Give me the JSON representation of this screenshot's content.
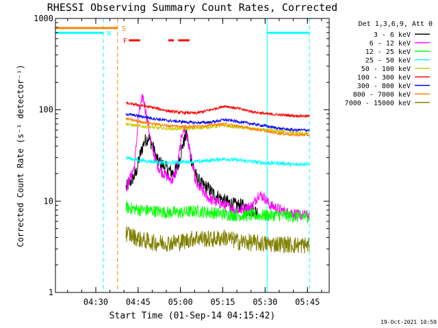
{
  "chart_data": {
    "type": "line",
    "title": "RHESSI Observing Summary Count Rates, Corrected",
    "xlabel": "Start Time (01-Sep-14 04:15:42)",
    "ylabel": "Corrected Count Rate (s⁻¹ detector⁻¹)",
    "yscale": "log",
    "ylim": [
      1,
      1000
    ],
    "xlim_minutes": [
      0,
      97
    ],
    "x_ticks": [
      {
        "t": 14.3,
        "label": "04:30"
      },
      {
        "t": 29.3,
        "label": "04:45"
      },
      {
        "t": 44.3,
        "label": "05:00"
      },
      {
        "t": 59.3,
        "label": "05:15"
      },
      {
        "t": 74.3,
        "label": "05:30"
      },
      {
        "t": 89.3,
        "label": "05:45"
      }
    ],
    "y_ticks": [
      {
        "v": 1,
        "label": "1"
      },
      {
        "v": 10,
        "label": "10"
      },
      {
        "v": 100,
        "label": "100"
      },
      {
        "v": 1000,
        "label": "1000"
      }
    ],
    "legend_header": "Det 1,3,6,9, Att 0",
    "timestamp": "19-Oct-2021 10:59",
    "series": [
      {
        "name": "3 - 6 keV",
        "color": "#000000",
        "t": [
          25,
          27,
          28.5,
          30,
          31.5,
          33,
          34.5,
          36,
          38,
          40,
          42,
          43.5,
          45,
          46.5,
          48,
          50,
          52,
          54,
          56,
          58,
          60,
          62,
          64,
          66,
          68,
          70,
          72
        ],
        "v": [
          14,
          17,
          20,
          32,
          45,
          50,
          40,
          28,
          25,
          22,
          20,
          25,
          40,
          55,
          30,
          18,
          15,
          14,
          12,
          11,
          10,
          9.5,
          9,
          9,
          8,
          8,
          7.5
        ]
      },
      {
        "name": "6 - 12 keV",
        "color": "#ff00ff",
        "t": [
          25,
          26.5,
          28,
          29.5,
          31,
          32.5,
          34,
          35.5,
          37,
          38.5,
          40,
          41.5,
          43,
          44,
          45,
          46,
          47,
          48.5,
          50,
          52,
          54,
          56,
          58,
          60,
          62,
          64,
          66,
          68,
          70,
          72,
          74,
          76,
          78,
          80,
          82,
          84,
          86,
          88,
          90
        ],
        "v": [
          14,
          18,
          24,
          90,
          140,
          80,
          42,
          28,
          22,
          20,
          18,
          17,
          22,
          35,
          58,
          62,
          45,
          25,
          15,
          13,
          11,
          10,
          9.5,
          9,
          8.5,
          8,
          8,
          8.5,
          9,
          12,
          11,
          9,
          8.5,
          8,
          7.5,
          7.5,
          7,
          7,
          7
        ]
      },
      {
        "name": "12 - 25 keV",
        "color": "#00ff00",
        "t": [
          25,
          30,
          35,
          40,
          45,
          50,
          55,
          60,
          65,
          70,
          75,
          80,
          85,
          90
        ],
        "v": [
          8.5,
          8,
          7.8,
          7.5,
          7.5,
          7.8,
          7.5,
          7.2,
          7,
          7,
          7,
          7,
          6.8,
          6.8
        ]
      },
      {
        "name": "25 - 50 keV",
        "color": "#00ffff",
        "t": [
          25,
          27,
          30,
          35,
          40,
          45,
          50,
          55,
          60,
          65,
          70,
          75,
          80,
          85,
          90
        ],
        "v": [
          30,
          29,
          28,
          27,
          26,
          27,
          27,
          28,
          29,
          28,
          27,
          26,
          26,
          25,
          26
        ]
      },
      {
        "name": "50 - 100 keV",
        "color": "#cccc00",
        "t": [
          25,
          30,
          35,
          40,
          45,
          50,
          55,
          60,
          65,
          70,
          75,
          80,
          85,
          90
        ],
        "v": [
          70,
          66,
          64,
          62,
          62,
          63,
          65,
          67,
          64,
          62,
          60,
          58,
          56,
          55
        ]
      },
      {
        "name": "100 - 300 keV",
        "color": "#ff0000",
        "t": [
          25,
          30,
          35,
          40,
          45,
          50,
          55,
          60,
          65,
          70,
          75,
          80,
          85,
          90
        ],
        "v": [
          118,
          112,
          105,
          97,
          93,
          92,
          100,
          110,
          103,
          95,
          90,
          88,
          86,
          85
        ]
      },
      {
        "name": "300 - 800 keV",
        "color": "#0000ff",
        "t": [
          25,
          30,
          35,
          40,
          45,
          50,
          55,
          60,
          65,
          70,
          75,
          80,
          85,
          90
        ],
        "v": [
          90,
          85,
          80,
          76,
          74,
          72,
          73,
          78,
          74,
          70,
          66,
          62,
          60,
          60
        ]
      },
      {
        "name": "800 - 7000 keV",
        "color": "#ff8000",
        "t": [
          25,
          30,
          35,
          40,
          45,
          50,
          55,
          60,
          65,
          70,
          75,
          80,
          85,
          90
        ],
        "v": [
          80,
          74,
          70,
          67,
          66,
          66,
          68,
          70,
          66,
          62,
          58,
          55,
          53,
          53
        ]
      },
      {
        "name": "7000 - 15000 keV",
        "color": "#808000",
        "t": [
          25,
          30,
          35,
          40,
          45,
          50,
          55,
          60,
          65,
          70,
          75,
          80,
          85,
          90
        ],
        "v": [
          4.5,
          3.8,
          3.5,
          3.5,
          3.6,
          4,
          3.8,
          4,
          3.6,
          3.5,
          3.4,
          3.4,
          3.3,
          3.3
        ]
      }
    ],
    "state_bars": [
      {
        "label": "S",
        "color": "#ff8000",
        "segments": [
          [
            0,
            22
          ]
        ]
      },
      {
        "label": "N",
        "color": "#00ffff",
        "segments": [
          [
            0,
            17
          ],
          [
            75,
            90
          ]
        ]
      },
      {
        "label": "F",
        "color": "#ff0000",
        "segments": [
          [
            26,
            30
          ],
          [
            40,
            42
          ],
          [
            43.5,
            47.5
          ]
        ]
      }
    ],
    "vlines": [
      {
        "t": 17,
        "color": "#00ffff",
        "style": "dashed"
      },
      {
        "t": 22,
        "color": "#ff8000",
        "style": "dashed"
      },
      {
        "t": 75,
        "color": "#00ffff",
        "style": "solid"
      },
      {
        "t": 90,
        "color": "#00ffff",
        "style": "dashed"
      }
    ]
  }
}
